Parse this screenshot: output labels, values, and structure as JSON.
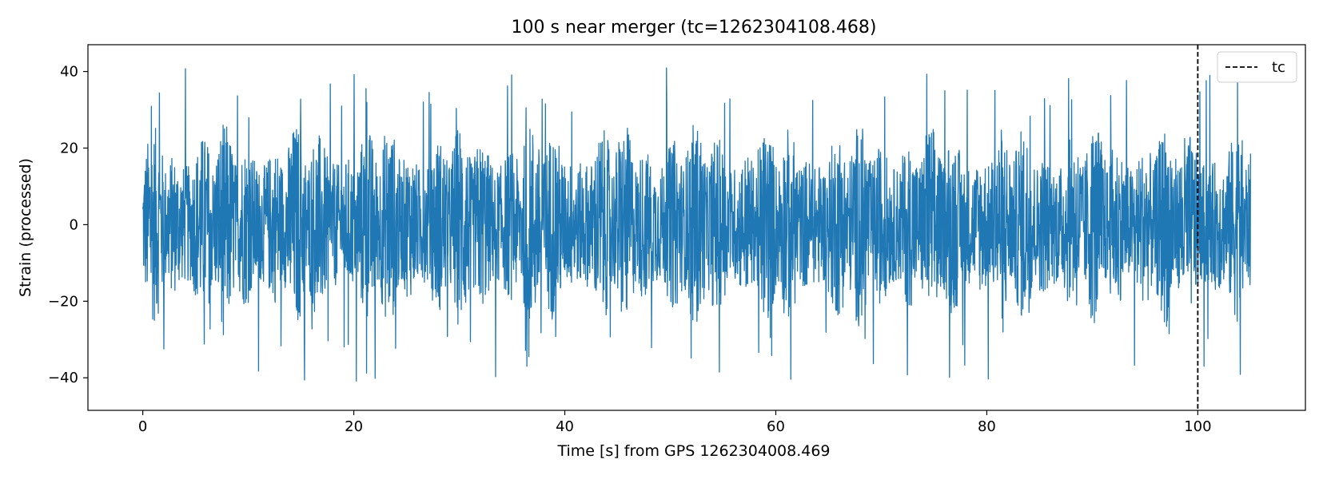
{
  "chart_data": {
    "type": "line",
    "title": "100 s near merger (tc=1262304108.468)",
    "xlabel": "Time [s] from GPS 1262304008.469",
    "ylabel": "Strain (processed)",
    "xlim": [
      -5.2,
      110.2
    ],
    "ylim": [
      -48.5,
      47.0
    ],
    "x_ticks": [
      0,
      20,
      40,
      60,
      80,
      100
    ],
    "x_tick_labels": [
      "0",
      "20",
      "40",
      "60",
      "80",
      "100"
    ],
    "y_ticks": [
      -40,
      -20,
      0,
      20,
      40
    ],
    "y_tick_labels": [
      "−40",
      "−20",
      "0",
      "20",
      "40"
    ],
    "series": [
      {
        "color": "#1f77b4",
        "x_range": [
          0,
          105
        ],
        "envelope_max": 43.0,
        "envelope_min": -44.5,
        "typical_amplitude": 27
      }
    ],
    "vline": {
      "x": 100.0,
      "label": "tc",
      "style": "dashed",
      "color": "#000000"
    },
    "legend": {
      "position": "top-right",
      "entries": [
        "tc"
      ]
    },
    "grid": false
  }
}
